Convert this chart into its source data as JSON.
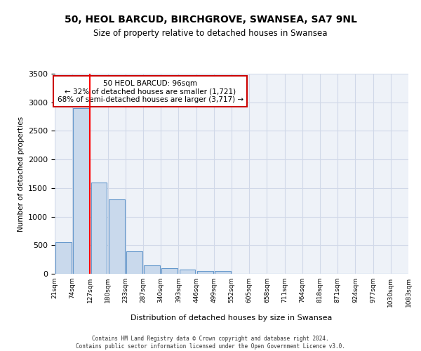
{
  "title_line1": "50, HEOL BARCUD, BIRCHGROVE, SWANSEA, SA7 9NL",
  "title_line2": "Size of property relative to detached houses in Swansea",
  "xlabel": "Distribution of detached houses by size in Swansea",
  "ylabel": "Number of detached properties",
  "bin_labels": [
    "21sqm",
    "74sqm",
    "127sqm",
    "180sqm",
    "233sqm",
    "287sqm",
    "340sqm",
    "393sqm",
    "446sqm",
    "499sqm",
    "552sqm",
    "605sqm",
    "658sqm",
    "711sqm",
    "764sqm",
    "818sqm",
    "871sqm",
    "924sqm",
    "977sqm",
    "1030sqm",
    "1083sqm"
  ],
  "bar_values": [
    550,
    2900,
    1600,
    1300,
    390,
    150,
    95,
    70,
    55,
    45,
    0,
    0,
    0,
    0,
    0,
    0,
    0,
    0,
    0,
    0
  ],
  "bar_color": "#c9d9ec",
  "bar_edge_color": "#6699cc",
  "grid_color": "#d0d8e8",
  "bg_color": "#eef2f8",
  "vline_x": 1.5,
  "annotation_text": "50 HEOL BARCUD: 96sqm\n← 32% of detached houses are smaller (1,721)\n68% of semi-detached houses are larger (3,717) →",
  "annotation_box_color": "#ffffff",
  "annotation_box_edge": "#cc0000",
  "footer_line1": "Contains HM Land Registry data © Crown copyright and database right 2024.",
  "footer_line2": "Contains public sector information licensed under the Open Government Licence v3.0.",
  "ylim": [
    0,
    3500
  ],
  "yticks": [
    0,
    500,
    1000,
    1500,
    2000,
    2500,
    3000,
    3500
  ]
}
